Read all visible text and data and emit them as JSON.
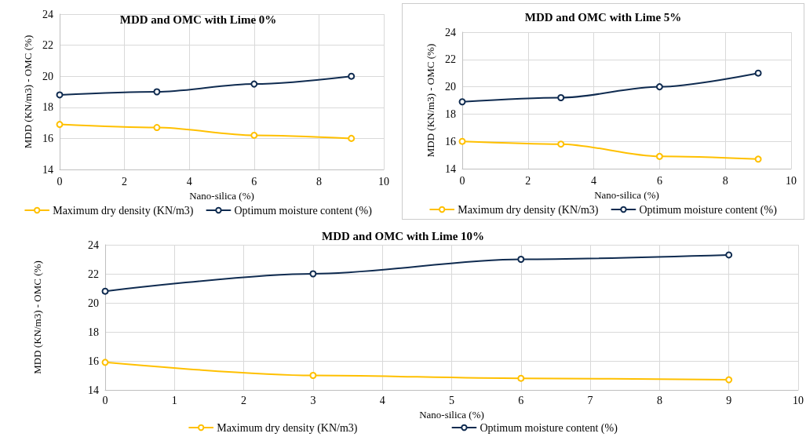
{
  "chart_data": [
    {
      "type": "line",
      "title": "MDD and OMC with Lime 0%",
      "xlabel": "Nano-silica (%)",
      "ylabel": "MDD (KN/m3) - OMC (%)",
      "x": [
        0,
        3,
        6,
        9
      ],
      "xlim": [
        0,
        10
      ],
      "xticks": [
        0,
        2,
        4,
        6,
        8,
        10
      ],
      "ylim": [
        14,
        24
      ],
      "yticks": [
        14,
        16,
        18,
        20,
        22,
        24
      ],
      "grid": true,
      "legend": "bottom",
      "marker": "circle",
      "line_style": "solid",
      "series": [
        {
          "name": "Maximum dry density (KN/m3)",
          "color": "#ffc000",
          "values": [
            16.9,
            16.7,
            16.2,
            16.0
          ]
        },
        {
          "name": "Optimum moisture content (%)",
          "color": "#0f2b50",
          "values": [
            18.8,
            19.0,
            19.5,
            20.0
          ]
        }
      ]
    },
    {
      "type": "line",
      "title": "MDD and OMC with Lime 5%",
      "xlabel": "Nano-silica (%)",
      "ylabel": "MDD (KN/m3) - OMC (%)",
      "x": [
        0,
        3,
        6,
        9
      ],
      "xlim": [
        0,
        10
      ],
      "xticks": [
        0,
        2,
        4,
        6,
        8,
        10
      ],
      "ylim": [
        14,
        24
      ],
      "yticks": [
        14,
        16,
        18,
        20,
        22,
        24
      ],
      "grid": true,
      "legend": "bottom",
      "marker": "circle",
      "line_style": "solid",
      "series": [
        {
          "name": "Maximum dry density (KN/m3)",
          "color": "#ffc000",
          "values": [
            16.0,
            15.8,
            14.9,
            14.7
          ]
        },
        {
          "name": "Optimum moisture content (%)",
          "color": "#0f2b50",
          "values": [
            18.9,
            19.2,
            20.0,
            21.0
          ]
        }
      ]
    },
    {
      "type": "line",
      "title": "MDD and OMC with Lime 10%",
      "xlabel": "Nano-silica (%)",
      "ylabel": "MDD (KN/m3) - OMC (%)",
      "x": [
        0,
        3,
        6,
        9
      ],
      "xlim": [
        0,
        10
      ],
      "xticks": [
        0,
        1,
        2,
        3,
        4,
        5,
        6,
        7,
        8,
        9,
        10
      ],
      "ylim": [
        14,
        24
      ],
      "yticks": [
        14,
        16,
        18,
        20,
        22,
        24
      ],
      "grid": true,
      "legend": "bottom",
      "marker": "circle",
      "line_style": "solid",
      "series": [
        {
          "name": "Maximum dry density (KN/m3)",
          "color": "#ffc000",
          "values": [
            15.9,
            15.0,
            14.8,
            14.7
          ]
        },
        {
          "name": "Optimum moisture content (%)",
          "color": "#0f2b50",
          "values": [
            20.8,
            22.0,
            23.0,
            23.3
          ]
        }
      ]
    }
  ]
}
